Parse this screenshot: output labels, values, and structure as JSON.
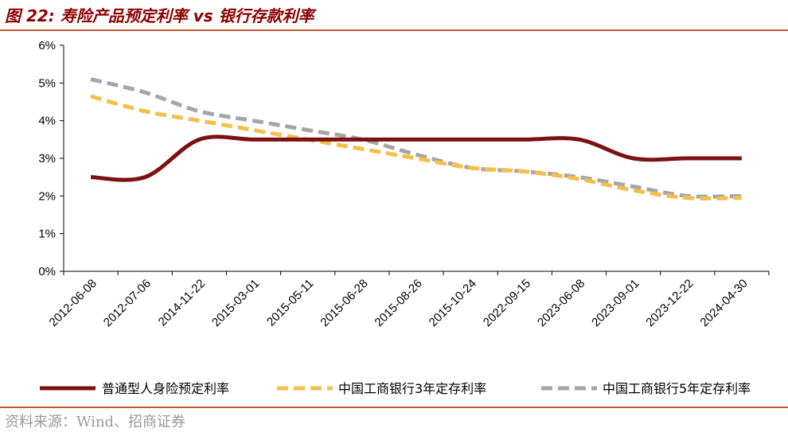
{
  "title": "图 22:  寿险产品预定利率 vs 银行存款利率",
  "source": "资料来源：Wind、招商证券",
  "chart_data": {
    "type": "line",
    "title": "寿险产品预定利率 vs 银行存款利率",
    "categories": [
      "2012-06-08",
      "2012-07-06",
      "2014-11-22",
      "2015-03-01",
      "2015-05-11",
      "2015-06-28",
      "2015-08-26",
      "2015-10-24",
      "2022-09-15",
      "2023-06-08",
      "2023-09-01",
      "2023-12-22",
      "2024-04-30"
    ],
    "ylim": [
      0,
      6
    ],
    "yticks": [
      "0%",
      "1%",
      "2%",
      "3%",
      "4%",
      "5%",
      "6%"
    ],
    "xlabel": "",
    "ylabel": "",
    "legend_position": "bottom",
    "series": [
      {
        "name": "普通型人身险预定利率",
        "color": "#7B1113",
        "style": "solid",
        "values": [
          2.5,
          2.5,
          3.5,
          3.5,
          3.5,
          3.5,
          3.5,
          3.5,
          3.5,
          3.5,
          3.0,
          3.0,
          3.0
        ]
      },
      {
        "name": "中国工商银行3年定存利率",
        "color": "#F4C04A",
        "style": "dashed",
        "values": [
          4.65,
          4.25,
          4.0,
          3.75,
          3.5,
          3.25,
          3.0,
          2.75,
          2.65,
          2.45,
          2.15,
          1.95,
          1.95
        ]
      },
      {
        "name": "中国工商银行5年定存利率",
        "color": "#A6A6A6",
        "style": "dashed",
        "values": [
          5.1,
          4.75,
          4.25,
          4.0,
          3.75,
          3.5,
          3.1,
          2.75,
          2.65,
          2.5,
          2.25,
          2.0,
          2.0
        ]
      }
    ]
  }
}
